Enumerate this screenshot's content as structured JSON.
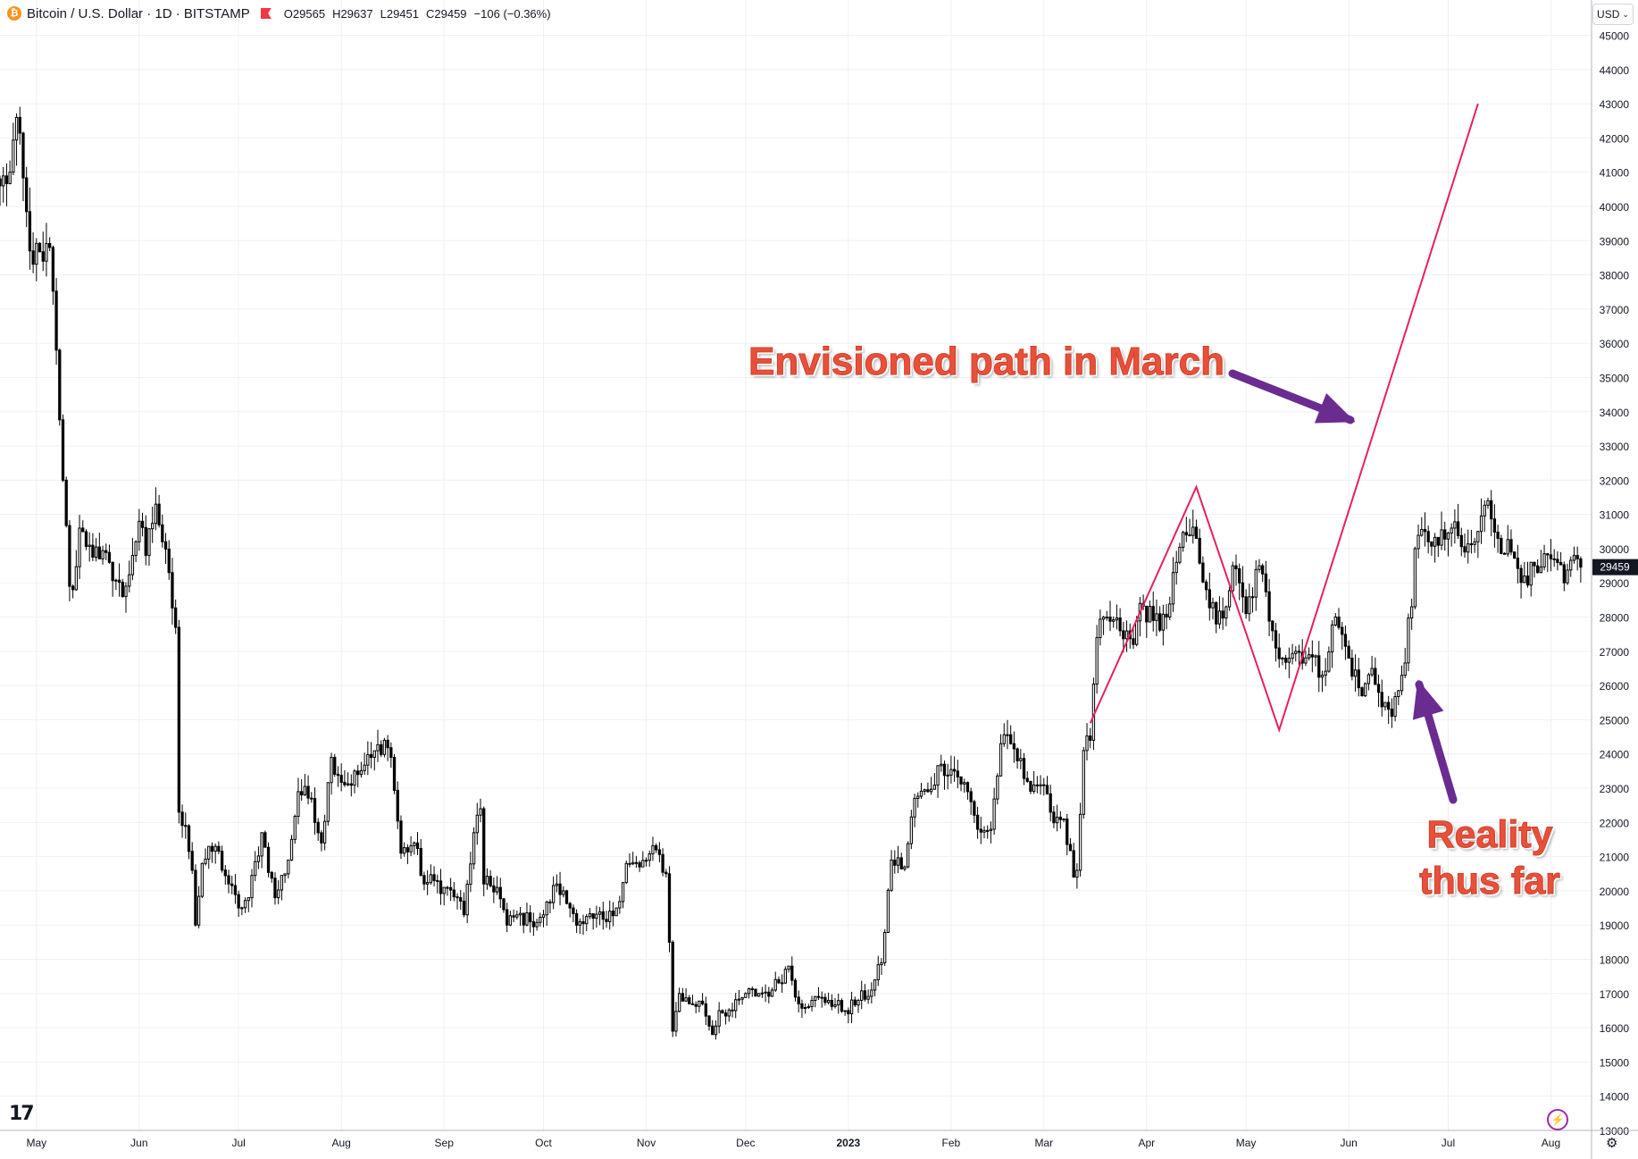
{
  "header": {
    "symbol_title": "Bitcoin / U.S. Dollar · 1D · BITSTAMP",
    "open_key": "O",
    "open": "29565",
    "high_key": "H",
    "high": "29637",
    "low_key": "L",
    "low": "29451",
    "close_key": "C",
    "close": "29459",
    "change": "−106 (−0.36%)",
    "coin_icon": "bitcoin-icon",
    "flag_icon": "flag-icon"
  },
  "currency_button": {
    "label": "USD",
    "chevron": "⌄"
  },
  "logo_text": "17",
  "bolt_icon": "⚡",
  "gear_icon": "⚙",
  "colors": {
    "candle": "#000000",
    "projection_line": "#e91e63",
    "arrow": "#6a2c91",
    "annotation_text": "#e8503a",
    "grid": "#eef0f3",
    "price_tag_bg": "#131722"
  },
  "annotations": {
    "envisioned": "Envisioned path in March",
    "reality_line1": "Reality",
    "reality_line2": "thus far"
  },
  "chart_data": {
    "type": "candlestick",
    "title": "Bitcoin / U.S. Dollar · 1D · BITSTAMP",
    "x_tick_labels": [
      "May",
      "Jun",
      "Jul",
      "Aug",
      "Sep",
      "Oct",
      "Nov",
      "Dec",
      "2023",
      "Feb",
      "Mar",
      "Apr",
      "May",
      "Jun",
      "Jul",
      "Aug"
    ],
    "x_tick_dates": [
      "2022-05-01",
      "2022-06-01",
      "2022-07-01",
      "2022-08-01",
      "2022-09-01",
      "2022-10-01",
      "2022-11-01",
      "2022-12-01",
      "2023-01-01",
      "2023-02-01",
      "2023-03-01",
      "2023-04-01",
      "2023-05-01",
      "2023-06-01",
      "2023-07-01",
      "2023-08-01"
    ],
    "y_tick_labels": [
      "45000",
      "44000",
      "43000",
      "42000",
      "41000",
      "40000",
      "39000",
      "38000",
      "37000",
      "36000",
      "35000",
      "34000",
      "33000",
      "32000",
      "31000",
      "30000",
      "29000",
      "28000",
      "27000",
      "26000",
      "25000",
      "24000",
      "23000",
      "22000",
      "21000",
      "20000",
      "19000",
      "18000",
      "17000",
      "16000",
      "15000",
      "14000",
      "13000"
    ],
    "ylim": [
      13000,
      45300
    ],
    "x_range": [
      "2022-04-20",
      "2023-08-13"
    ],
    "last_price": "29459",
    "series_close_waypoints": [
      [
        "2022-04-20",
        40600
      ],
      [
        "2022-04-23",
        41000
      ],
      [
        "2022-04-25",
        42600
      ],
      [
        "2022-04-29",
        38700
      ],
      [
        "2022-05-03",
        38400
      ],
      [
        "2022-05-05",
        38800
      ],
      [
        "2022-05-07",
        35800
      ],
      [
        "2022-05-09",
        32000
      ],
      [
        "2022-05-11",
        28900
      ],
      [
        "2022-05-12",
        28800
      ],
      [
        "2022-05-14",
        30600
      ],
      [
        "2022-05-17",
        30100
      ],
      [
        "2022-05-20",
        29700
      ],
      [
        "2022-05-23",
        29600
      ],
      [
        "2022-05-27",
        28600
      ],
      [
        "2022-05-30",
        29800
      ],
      [
        "2022-06-01",
        30800
      ],
      [
        "2022-06-03",
        29800
      ],
      [
        "2022-06-06",
        31300
      ],
      [
        "2022-06-08",
        30200
      ],
      [
        "2022-06-10",
        29300
      ],
      [
        "2022-06-12",
        27700
      ],
      [
        "2022-06-13",
        22300
      ],
      [
        "2022-06-15",
        21900
      ],
      [
        "2022-06-17",
        20600
      ],
      [
        "2022-06-18",
        19000
      ],
      [
        "2022-06-20",
        20800
      ],
      [
        "2022-06-24",
        21300
      ],
      [
        "2022-06-28",
        20200
      ],
      [
        "2022-07-01",
        19500
      ],
      [
        "2022-07-04",
        19800
      ],
      [
        "2022-07-08",
        21700
      ],
      [
        "2022-07-12",
        19800
      ],
      [
        "2022-07-16",
        20900
      ],
      [
        "2022-07-19",
        22900
      ],
      [
        "2022-07-23",
        22700
      ],
      [
        "2022-07-26",
        21400
      ],
      [
        "2022-07-29",
        23900
      ],
      [
        "2022-08-02",
        23100
      ],
      [
        "2022-08-06",
        23400
      ],
      [
        "2022-08-10",
        23900
      ],
      [
        "2022-08-14",
        24400
      ],
      [
        "2022-08-16",
        23900
      ],
      [
        "2022-08-19",
        21100
      ],
      [
        "2022-08-23",
        21400
      ],
      [
        "2022-08-26",
        20200
      ],
      [
        "2022-08-29",
        20300
      ],
      [
        "2022-09-01",
        20100
      ],
      [
        "2022-09-05",
        19800
      ],
      [
        "2022-09-07",
        19300
      ],
      [
        "2022-09-10",
        21700
      ],
      [
        "2022-09-12",
        22400
      ],
      [
        "2022-09-13",
        20200
      ],
      [
        "2022-09-17",
        20100
      ],
      [
        "2022-09-20",
        19000
      ],
      [
        "2022-09-23",
        19300
      ],
      [
        "2022-09-27",
        19100
      ],
      [
        "2022-10-01",
        19300
      ],
      [
        "2022-10-05",
        20200
      ],
      [
        "2022-10-09",
        19500
      ],
      [
        "2022-10-12",
        19100
      ],
      [
        "2022-10-16",
        19200
      ],
      [
        "2022-10-20",
        19100
      ],
      [
        "2022-10-23",
        19500
      ],
      [
        "2022-10-26",
        20800
      ],
      [
        "2022-10-30",
        20700
      ],
      [
        "2022-11-04",
        21200
      ],
      [
        "2022-11-07",
        20500
      ],
      [
        "2022-11-08",
        18500
      ],
      [
        "2022-11-09",
        15900
      ],
      [
        "2022-11-11",
        17000
      ],
      [
        "2022-11-14",
        16700
      ],
      [
        "2022-11-18",
        16700
      ],
      [
        "2022-11-21",
        15800
      ],
      [
        "2022-11-23",
        16500
      ],
      [
        "2022-11-27",
        16500
      ],
      [
        "2022-12-01",
        17000
      ],
      [
        "2022-12-05",
        17000
      ],
      [
        "2022-12-09",
        17100
      ],
      [
        "2022-12-14",
        17800
      ],
      [
        "2022-12-17",
        16700
      ],
      [
        "2022-12-21",
        16800
      ],
      [
        "2022-12-26",
        16800
      ],
      [
        "2022-12-31",
        16500
      ],
      [
        "2023-01-04",
        16800
      ],
      [
        "2023-01-08",
        17100
      ],
      [
        "2023-01-11",
        17900
      ],
      [
        "2023-01-14",
        20900
      ],
      [
        "2023-01-18",
        20700
      ],
      [
        "2023-01-21",
        22700
      ],
      [
        "2023-01-25",
        22900
      ],
      [
        "2023-01-29",
        23700
      ],
      [
        "2023-02-02",
        23500
      ],
      [
        "2023-02-06",
        22900
      ],
      [
        "2023-02-09",
        21800
      ],
      [
        "2023-02-13",
        21800
      ],
      [
        "2023-02-16",
        24300
      ],
      [
        "2023-02-19",
        24300
      ],
      [
        "2023-02-24",
        23200
      ],
      [
        "2023-02-28",
        23100
      ],
      [
        "2023-03-03",
        22300
      ],
      [
        "2023-03-07",
        22100
      ],
      [
        "2023-03-10",
        20400
      ],
      [
        "2023-03-11",
        20600
      ],
      [
        "2023-03-13",
        24100
      ],
      [
        "2023-03-15",
        24400
      ],
      [
        "2023-03-17",
        27400
      ],
      [
        "2023-03-20",
        28000
      ],
      [
        "2023-03-24",
        27600
      ],
      [
        "2023-03-28",
        27200
      ],
      [
        "2023-03-30",
        28400
      ],
      [
        "2023-04-03",
        27900
      ],
      [
        "2023-04-07",
        28000
      ],
      [
        "2023-04-10",
        29600
      ],
      [
        "2023-04-13",
        30400
      ],
      [
        "2023-04-16",
        30300
      ],
      [
        "2023-04-19",
        28800
      ],
      [
        "2023-04-22",
        27800
      ],
      [
        "2023-04-25",
        28300
      ],
      [
        "2023-04-27",
        29500
      ],
      [
        "2023-05-01",
        28100
      ],
      [
        "2023-05-05",
        29500
      ],
      [
        "2023-05-09",
        27600
      ],
      [
        "2023-05-12",
        26800
      ],
      [
        "2023-05-16",
        27000
      ],
      [
        "2023-05-20",
        26900
      ],
      [
        "2023-05-24",
        26300
      ],
      [
        "2023-05-28",
        28000
      ],
      [
        "2023-06-01",
        26800
      ],
      [
        "2023-06-05",
        25700
      ],
      [
        "2023-06-08",
        26500
      ],
      [
        "2023-06-10",
        25800
      ],
      [
        "2023-06-14",
        25100
      ],
      [
        "2023-06-17",
        26300
      ],
      [
        "2023-06-20",
        28300
      ],
      [
        "2023-06-21",
        30000
      ],
      [
        "2023-06-24",
        30500
      ],
      [
        "2023-06-28",
        30100
      ],
      [
        "2023-07-02",
        30600
      ],
      [
        "2023-07-06",
        29900
      ],
      [
        "2023-07-09",
        30200
      ],
      [
        "2023-07-13",
        31400
      ],
      [
        "2023-07-16",
        30300
      ],
      [
        "2023-07-20",
        29900
      ],
      [
        "2023-07-24",
        29200
      ],
      [
        "2023-07-28",
        29300
      ],
      [
        "2023-08-01",
        29700
      ],
      [
        "2023-08-05",
        29000
      ],
      [
        "2023-08-08",
        29800
      ],
      [
        "2023-08-09",
        29700
      ],
      [
        "2023-08-10",
        29459
      ]
    ],
    "envisioned_path": [
      [
        "2023-03-15",
        24900
      ],
      [
        "2023-04-16",
        31800
      ],
      [
        "2023-05-11",
        24700
      ],
      [
        "2023-07-10",
        43000
      ]
    ]
  }
}
